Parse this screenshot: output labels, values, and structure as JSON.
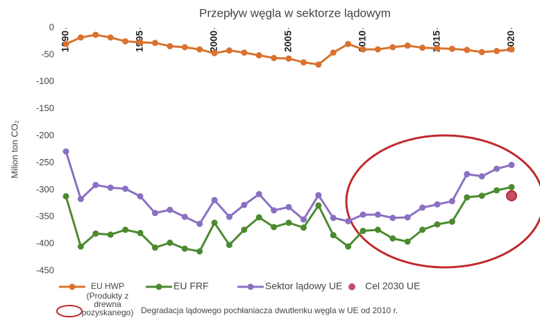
{
  "chart_data": {
    "type": "line",
    "title": "Przepływ węgla w sektorze lądowym",
    "y_label": "Milion ton CO₂",
    "x": [
      1990,
      1991,
      1992,
      1993,
      1994,
      1995,
      1996,
      1997,
      1998,
      1999,
      2000,
      2001,
      2002,
      2003,
      2004,
      2005,
      2006,
      2007,
      2008,
      2009,
      2010,
      2011,
      2012,
      2013,
      2014,
      2015,
      2016,
      2017,
      2018,
      2019,
      2020
    ],
    "xlim": [
      1990,
      2020
    ],
    "xticks": [
      1990,
      1995,
      2000,
      2005,
      2010,
      2015,
      2020
    ],
    "ylim": [
      -450,
      0
    ],
    "yticks": [
      0,
      -50,
      -100,
      -150,
      -200,
      -250,
      -300,
      -350,
      -400,
      -450
    ],
    "series": [
      {
        "name": "EU HWP",
        "color": "#d9722e",
        "values": [
          -30,
          -18,
          -13,
          -18,
          -25,
          -27,
          -28,
          -34,
          -36,
          -40,
          -47,
          -42,
          -46,
          -51,
          -56,
          -57,
          -64,
          -68,
          -46,
          -30,
          -40,
          -40,
          -36,
          -33,
          -37,
          -38,
          -39,
          -41,
          -45,
          -43,
          -40
        ]
      },
      {
        "name": "EU FRF",
        "color": "#4b8a2f",
        "values": [
          -312,
          -405,
          -381,
          -383,
          -374,
          -380,
          -407,
          -398,
          -409,
          -414,
          -361,
          -402,
          -374,
          -351,
          -369,
          -361,
          -370,
          -329,
          -384,
          -405,
          -376,
          -374,
          -390,
          -396,
          -374,
          -364,
          -359,
          -314,
          -311,
          -301,
          -295
        ]
      },
      {
        "name": "Sektor lądowy UE",
        "color": "#8a6fc2",
        "values": [
          -229,
          -317,
          -291,
          -296,
          -298,
          -312,
          -343,
          -337,
          -350,
          -363,
          -319,
          -350,
          -328,
          -308,
          -338,
          -332,
          -355,
          -310,
          -352,
          -358,
          -346,
          -346,
          -352,
          -351,
          -333,
          -327,
          -321,
          -271,
          -275,
          -261,
          -254
        ]
      }
    ],
    "legend_note": [
      "(Produkty z",
      "drewna",
      "pozyskanego)"
    ],
    "target": {
      "name": "Cel 2030 UE",
      "x": 2020,
      "value": -311,
      "color": "#c0506b"
    },
    "annotation": "Degradacja lądowego pochłaniacza dwutlenku węgla w UE od 2010 r."
  }
}
